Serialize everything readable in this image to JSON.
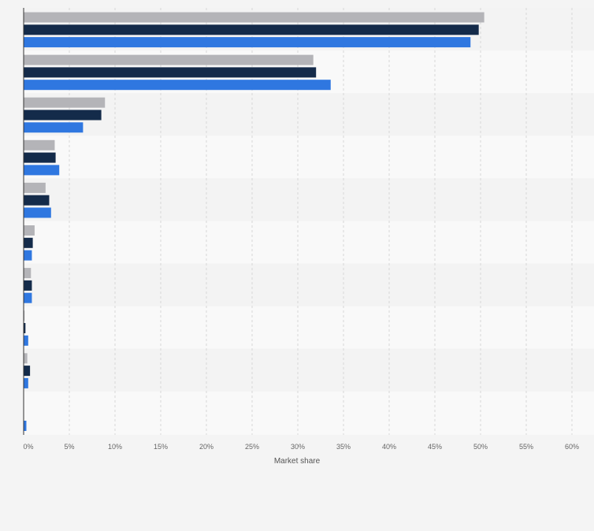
{
  "chart_data": {
    "type": "bar",
    "orientation": "horizontal",
    "categories": [
      "",
      "",
      "",
      "",
      "",
      "",
      "",
      "",
      "",
      ""
    ],
    "series": [
      {
        "color": "#b4b4b8",
        "values": [
          50.4,
          31.7,
          8.9,
          3.4,
          2.4,
          1.2,
          0.8,
          0.1,
          0.4,
          null
        ]
      },
      {
        "color": "#142b4a",
        "values": [
          49.8,
          32.0,
          8.5,
          3.5,
          2.8,
          1.0,
          0.9,
          0.2,
          0.7,
          null
        ]
      },
      {
        "color": "#2f77e0",
        "values": [
          48.9,
          33.6,
          6.5,
          3.9,
          3.0,
          0.9,
          0.9,
          0.5,
          0.5,
          0.3
        ]
      }
    ],
    "xlim": [
      0,
      60
    ],
    "x_ticks": [
      "0%",
      "5%",
      "10%",
      "15%",
      "20%",
      "25%",
      "30%",
      "35%",
      "40%",
      "45%",
      "50%",
      "55%",
      "60%"
    ],
    "xlabel": "Market share",
    "grid": true,
    "colors": {
      "background": "#f4f4f4",
      "band_light": "#f9f9f9",
      "band_dark": "#f3f3f3"
    }
  }
}
